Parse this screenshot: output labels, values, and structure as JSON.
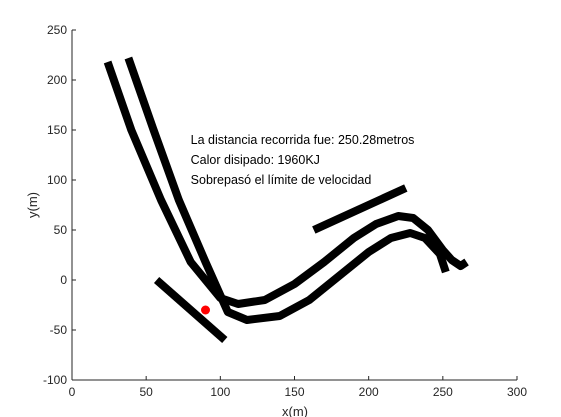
{
  "chart_data": {
    "type": "line",
    "title": "",
    "xlabel": "x(m)",
    "ylabel": "y(m)",
    "xlim": [
      0,
      300
    ],
    "ylim": [
      -100,
      250
    ],
    "xticks": [
      "0",
      "50",
      "100",
      "150",
      "200",
      "250",
      "300"
    ],
    "yticks": [
      "-100",
      "-50",
      "0",
      "50",
      "100",
      "150",
      "200",
      "250"
    ],
    "grid": false,
    "legend": "none",
    "series": [
      {
        "points": [
          [
            24,
            218
          ],
          [
            40,
            150
          ],
          [
            60,
            80
          ],
          [
            80,
            18
          ],
          [
            100,
            -18
          ],
          [
            112,
            -24
          ],
          [
            130,
            -20
          ],
          [
            150,
            -4
          ],
          [
            170,
            18
          ],
          [
            190,
            42
          ],
          [
            205,
            56
          ],
          [
            220,
            64
          ],
          [
            230,
            62
          ],
          [
            240,
            50
          ],
          [
            250,
            30
          ],
          [
            256,
            20
          ],
          [
            262,
            14
          ],
          [
            266,
            18
          ]
        ],
        "color": "#000000"
      },
      {
        "points": [
          [
            38,
            222
          ],
          [
            55,
            150
          ],
          [
            72,
            80
          ],
          [
            90,
            18
          ],
          [
            105,
            -32
          ],
          [
            118,
            -40
          ],
          [
            140,
            -36
          ],
          [
            160,
            -20
          ],
          [
            180,
            4
          ],
          [
            200,
            28
          ],
          [
            215,
            42
          ],
          [
            228,
            47
          ],
          [
            238,
            42
          ],
          [
            248,
            26
          ],
          [
            252,
            8
          ]
        ],
        "color": "#000000"
      },
      {
        "points": [
          [
            163,
            50
          ],
          [
            225,
            92
          ]
        ],
        "color": "#000000"
      },
      {
        "points": [
          [
            57,
            0
          ],
          [
            103,
            -60
          ]
        ],
        "color": "#000000"
      }
    ],
    "marker": {
      "x": 90,
      "y": -30,
      "color": "#ff0000"
    },
    "annotations": [
      {
        "text": "La distancia recorrida fue: 250.28metros",
        "x": 80,
        "y": 140
      },
      {
        "text": "Calor disipado: 1960KJ",
        "x": 80,
        "y": 120
      },
      {
        "text": "Sobrepasó el límite de velocidad",
        "x": 80,
        "y": 100
      }
    ]
  }
}
